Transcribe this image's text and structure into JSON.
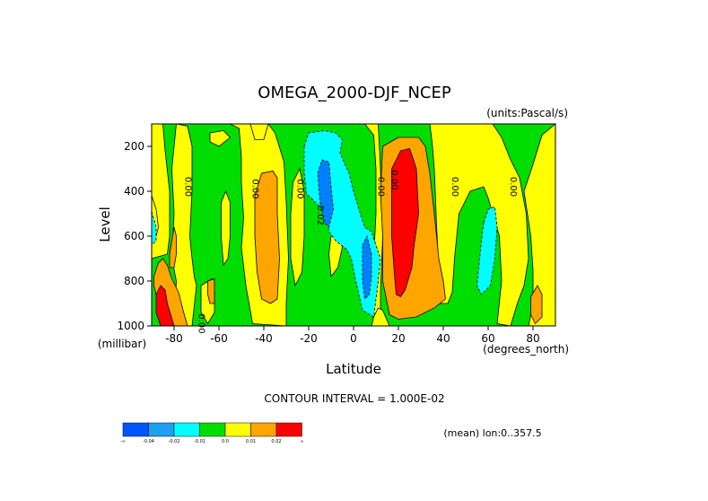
{
  "chart_data": {
    "type": "heatmap",
    "title": "OMEGA_2000-DJF_NCEP",
    "units_label": "(units:Pascal/s)",
    "xlabel": "Latitude",
    "ylabel": "Level",
    "x_unit_label": "(degrees_north)",
    "y_unit_label": "(millibar)",
    "xlim": [
      -90,
      90
    ],
    "ylim": [
      1000,
      100
    ],
    "x_ticks": [
      -80,
      -60,
      -40,
      -20,
      0,
      20,
      40,
      60,
      80
    ],
    "x_tick_labels": [
      "-80",
      "-60",
      "-40",
      "-20",
      "0",
      "20",
      "40",
      "60",
      "80"
    ],
    "y_ticks": [
      200,
      400,
      600,
      800,
      1000
    ],
    "y_tick_labels": [
      "200",
      "400",
      "600",
      "800",
      "1000"
    ],
    "contour_interval_label": "CONTOUR INTERVAL = 1.000E-02",
    "mean_label": "(mean) lon:0..357.5",
    "contour_labels": [
      {
        "lat": -75,
        "lev": 380,
        "text": "0.00"
      },
      {
        "lat": -45,
        "lev": 390,
        "text": "0.00"
      },
      {
        "lat": -25,
        "lev": 390,
        "text": "0.00"
      },
      {
        "lat": -16,
        "lev": 500,
        "text": "-0.02"
      },
      {
        "lat": 11,
        "lev": 380,
        "text": "0.00"
      },
      {
        "lat": 17,
        "lev": 350,
        "text": "0.00"
      },
      {
        "lat": 44,
        "lev": 380,
        "text": "0.00"
      },
      {
        "lat": 70,
        "lev": 380,
        "text": "0.00"
      },
      {
        "lat": -69,
        "lev": 990,
        "text": "0.00"
      }
    ],
    "colorbar": {
      "colors": [
        "#0055ff",
        "#1ea0ee",
        "#00ffff",
        "#00dd00",
        "#ffff00",
        "#ffa500",
        "#ff0000"
      ],
      "labels": [
        "-∞",
        "-0.04",
        "-0.02",
        "-0.01",
        "0.0",
        "0.01",
        "0.02",
        "∞"
      ]
    },
    "regions": [
      {
        "level": 0,
        "points": [
          [
            -90,
            100
          ],
          [
            -85,
            100
          ],
          [
            -84,
            220
          ],
          [
            -82,
            400
          ],
          [
            -82,
            600
          ],
          [
            -83,
            680
          ],
          [
            -90,
            700
          ]
        ]
      },
      {
        "level": 0,
        "points": [
          [
            -90,
            420
          ],
          [
            -88,
            480
          ],
          [
            -87,
            560
          ],
          [
            -88,
            600
          ],
          [
            -90,
            610
          ]
        ]
      },
      {
        "level": 0,
        "points": [
          [
            -79,
            100
          ],
          [
            -74,
            110
          ],
          [
            -72,
            200
          ],
          [
            -72,
            400
          ],
          [
            -73,
            600
          ],
          [
            -72,
            700
          ],
          [
            -71,
            780
          ],
          [
            -70,
            820
          ],
          [
            -72,
            1000
          ],
          [
            -80,
            1000
          ],
          [
            -79,
            800
          ],
          [
            -81,
            700
          ],
          [
            -80,
            500
          ],
          [
            -81,
            300
          ]
        ]
      },
      {
        "level": 0,
        "points": [
          [
            -64,
            140
          ],
          [
            -58,
            130
          ],
          [
            -55,
            160
          ],
          [
            -60,
            200
          ],
          [
            -64,
            180
          ]
        ]
      },
      {
        "level": 0,
        "points": [
          [
            -57,
            400
          ],
          [
            -55,
            450
          ],
          [
            -55,
            600
          ],
          [
            -56,
            700
          ],
          [
            -58,
            730
          ],
          [
            -59,
            600
          ],
          [
            -59,
            450
          ]
        ]
      },
      {
        "level": 0,
        "points": [
          [
            -68,
            820
          ],
          [
            -63,
            790
          ],
          [
            -62,
            850
          ],
          [
            -62,
            940
          ],
          [
            -65,
            990
          ],
          [
            -68,
            940
          ]
        ]
      },
      {
        "level": 0,
        "points": [
          [
            -55,
            100
          ],
          [
            -51,
            120
          ],
          [
            -50,
            250
          ],
          [
            -50,
            360
          ],
          [
            -49,
            520
          ],
          [
            -50,
            650
          ],
          [
            -48,
            820
          ],
          [
            -45,
            990
          ],
          [
            -30,
            1000
          ],
          [
            -30,
            900
          ],
          [
            -29,
            700
          ],
          [
            -30,
            450
          ],
          [
            -31,
            270
          ],
          [
            -35,
            140
          ],
          [
            -38,
            100
          ]
        ]
      },
      {
        "level": 0,
        "points": [
          [
            -27,
            360
          ],
          [
            -24,
            300
          ],
          [
            -22,
            400
          ],
          [
            -22,
            600
          ],
          [
            -23,
            760
          ],
          [
            -26,
            820
          ],
          [
            -28,
            700
          ],
          [
            -28,
            500
          ]
        ]
      },
      {
        "level": 0,
        "points": [
          [
            -10,
            600
          ],
          [
            -7,
            540
          ],
          [
            -5,
            560
          ],
          [
            -5,
            650
          ],
          [
            -7,
            740
          ],
          [
            -10,
            780
          ],
          [
            -11,
            680
          ]
        ]
      },
      {
        "level": 0,
        "points": [
          [
            5,
            100
          ],
          [
            11,
            100
          ],
          [
            12,
            300
          ],
          [
            13,
            600
          ],
          [
            12,
            850
          ],
          [
            12,
            940
          ],
          [
            9,
            980
          ],
          [
            7,
            800
          ],
          [
            9,
            700
          ],
          [
            10,
            500
          ],
          [
            10,
            300
          ],
          [
            9,
            150
          ]
        ]
      },
      {
        "level": 0,
        "points": [
          [
            9,
            960
          ],
          [
            11,
            920
          ],
          [
            13,
            930
          ],
          [
            16,
            1000
          ],
          [
            8,
            1000
          ]
        ]
      },
      {
        "level": 0,
        "points": [
          [
            34,
            100
          ],
          [
            62,
            100
          ],
          [
            66,
            160
          ],
          [
            70,
            260
          ],
          [
            74,
            340
          ],
          [
            77,
            500
          ],
          [
            78,
            700
          ],
          [
            76,
            820
          ],
          [
            73,
            900
          ],
          [
            70,
            1000
          ],
          [
            64,
            990
          ],
          [
            66,
            800
          ],
          [
            65,
            600
          ],
          [
            60,
            430
          ],
          [
            58,
            380
          ],
          [
            52,
            400
          ],
          [
            47,
            500
          ],
          [
            45,
            700
          ],
          [
            44,
            850
          ],
          [
            42,
            900
          ],
          [
            39,
            900
          ],
          [
            38,
            750
          ],
          [
            37,
            550
          ],
          [
            36,
            300
          ],
          [
            35,
            180
          ]
        ]
      },
      {
        "level": 0,
        "points": [
          [
            76,
            400
          ],
          [
            80,
            280
          ],
          [
            84,
            150
          ],
          [
            90,
            100
          ],
          [
            90,
            1000
          ],
          [
            78,
            1000
          ],
          [
            80,
            900
          ],
          [
            80,
            750
          ],
          [
            79,
            600
          ]
        ]
      },
      {
        "level": 0,
        "points": [
          [
            -46,
            100
          ],
          [
            -38,
            100
          ],
          [
            -40,
            170
          ],
          [
            -44,
            170
          ]
        ]
      },
      {
        "level": 1,
        "points": [
          [
            -79,
            1000
          ],
          [
            -83,
            1000
          ],
          [
            -86,
            940
          ],
          [
            -88,
            860
          ],
          [
            -89,
            820
          ],
          [
            -89,
            780
          ],
          [
            -87,
            720
          ],
          [
            -85,
            700
          ],
          [
            -83,
            730
          ],
          [
            -81,
            790
          ],
          [
            -78,
            850
          ],
          [
            -76,
            930
          ],
          [
            -74,
            1000
          ]
        ]
      },
      {
        "level": 1,
        "points": [
          [
            -82,
            680
          ],
          [
            -80,
            560
          ],
          [
            -79,
            600
          ],
          [
            -79,
            680
          ],
          [
            -80,
            740
          ],
          [
            -82,
            740
          ]
        ]
      },
      {
        "level": 1,
        "points": [
          [
            -65,
            800
          ],
          [
            -62,
            790
          ],
          [
            -62,
            900
          ],
          [
            -64,
            900
          ],
          [
            -65,
            860
          ]
        ]
      },
      {
        "level": 1,
        "points": [
          [
            -44,
            420
          ],
          [
            -41,
            320
          ],
          [
            -36,
            310
          ],
          [
            -34,
            340
          ],
          [
            -34,
            500
          ],
          [
            -33,
            700
          ],
          [
            -34,
            880
          ],
          [
            -37,
            900
          ],
          [
            -41,
            880
          ],
          [
            -43,
            760
          ],
          [
            -44,
            600
          ]
        ]
      },
      {
        "level": 1,
        "points": [
          [
            13,
            200
          ],
          [
            20,
            160
          ],
          [
            29,
            160
          ],
          [
            32,
            200
          ],
          [
            34,
            320
          ],
          [
            36,
            500
          ],
          [
            38,
            700
          ],
          [
            40,
            800
          ],
          [
            41,
            880
          ],
          [
            36,
            920
          ],
          [
            28,
            960
          ],
          [
            20,
            970
          ],
          [
            16,
            950
          ],
          [
            13,
            800
          ],
          [
            13,
            600
          ],
          [
            12,
            400
          ]
        ]
      },
      {
        "level": 1,
        "points": [
          [
            79,
            870
          ],
          [
            82,
            820
          ],
          [
            84,
            860
          ],
          [
            84,
            960
          ],
          [
            81,
            990
          ],
          [
            79,
            950
          ]
        ]
      },
      {
        "level": 2,
        "points": [
          [
            -88,
            860
          ],
          [
            -86,
            820
          ],
          [
            -84,
            840
          ],
          [
            -83,
            900
          ],
          [
            -80,
            1000
          ],
          [
            -86,
            1000
          ],
          [
            -88,
            940
          ]
        ]
      },
      {
        "level": 2,
        "points": [
          [
            17,
            300
          ],
          [
            21,
            220
          ],
          [
            25,
            210
          ],
          [
            28,
            300
          ],
          [
            29,
            500
          ],
          [
            27,
            640
          ],
          [
            26,
            740
          ],
          [
            23,
            840
          ],
          [
            21,
            870
          ],
          [
            19,
            860
          ],
          [
            18,
            740
          ],
          [
            17,
            600
          ],
          [
            17,
            400
          ]
        ]
      },
      {
        "level": -1,
        "points": [
          [
            -90,
            490
          ],
          [
            -88,
            560
          ],
          [
            -88,
            620
          ],
          [
            -90,
            640
          ]
        ]
      },
      {
        "level": -1,
        "points": [
          [
            -22,
            200
          ],
          [
            -20,
            140
          ],
          [
            -13,
            130
          ],
          [
            -8,
            140
          ],
          [
            -5,
            170
          ],
          [
            -6,
            230
          ],
          [
            -2,
            320
          ],
          [
            0,
            400
          ],
          [
            3,
            500
          ],
          [
            5,
            560
          ],
          [
            8,
            580
          ],
          [
            10,
            640
          ],
          [
            12,
            700
          ],
          [
            11,
            800
          ],
          [
            10,
            880
          ],
          [
            9,
            960
          ],
          [
            4,
            930
          ],
          [
            1,
            800
          ],
          [
            -1,
            700
          ],
          [
            -3,
            660
          ],
          [
            -8,
            620
          ],
          [
            -11,
            580
          ],
          [
            -12,
            500
          ],
          [
            -16,
            460
          ],
          [
            -21,
            410
          ],
          [
            -22,
            320
          ]
        ]
      },
      {
        "level": -1,
        "points": [
          [
            58,
            540
          ],
          [
            60,
            480
          ],
          [
            63,
            470
          ],
          [
            64,
            560
          ],
          [
            63,
            700
          ],
          [
            61,
            820
          ],
          [
            57,
            860
          ],
          [
            55,
            820
          ],
          [
            56,
            720
          ],
          [
            57,
            620
          ]
        ]
      },
      {
        "level": -2,
        "points": [
          [
            -16,
            320
          ],
          [
            -14,
            260
          ],
          [
            -11,
            270
          ],
          [
            -10,
            380
          ],
          [
            -9,
            480
          ],
          [
            -11,
            560
          ],
          [
            -13,
            540
          ],
          [
            -15,
            440
          ]
        ]
      },
      {
        "level": -2,
        "points": [
          [
            4,
            640
          ],
          [
            6,
            600
          ],
          [
            8,
            680
          ],
          [
            8,
            780
          ],
          [
            7,
            860
          ],
          [
            5,
            880
          ],
          [
            4,
            800
          ]
        ]
      }
    ]
  }
}
